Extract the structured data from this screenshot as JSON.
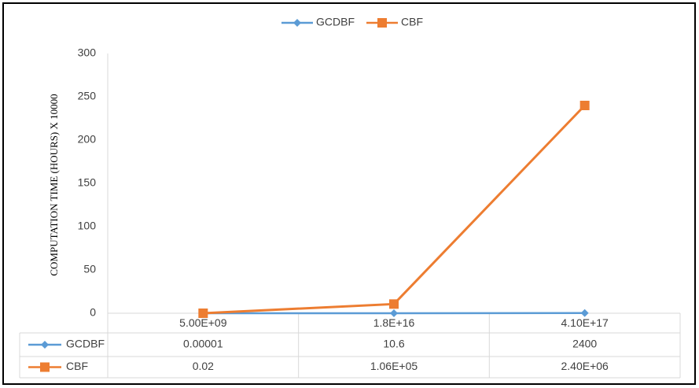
{
  "chart_data": {
    "type": "line",
    "y_label": "COMPUTATION TIME (HOURS)  X 10000",
    "categories": [
      "5.00E+09",
      "1.8E+16",
      "4.10E+17"
    ],
    "series": [
      {
        "name": "GCDBF",
        "color": "#5b9bd5",
        "marker": "diamond",
        "values": [
          1e-09,
          0.00106,
          0.24
        ],
        "value_labels": [
          "0.00001",
          "10.6",
          "2400"
        ]
      },
      {
        "name": "CBF",
        "color": "#ed7d31",
        "marker": "square",
        "values": [
          2e-06,
          10.6,
          240
        ],
        "value_labels": [
          "0.02",
          "1.06E+05",
          "2.40E+06"
        ]
      }
    ],
    "ylim": [
      0,
      300
    ],
    "yticks": [
      0,
      50,
      100,
      150,
      200,
      250,
      300
    ],
    "grid": false,
    "legend": "top",
    "data_table": true
  }
}
